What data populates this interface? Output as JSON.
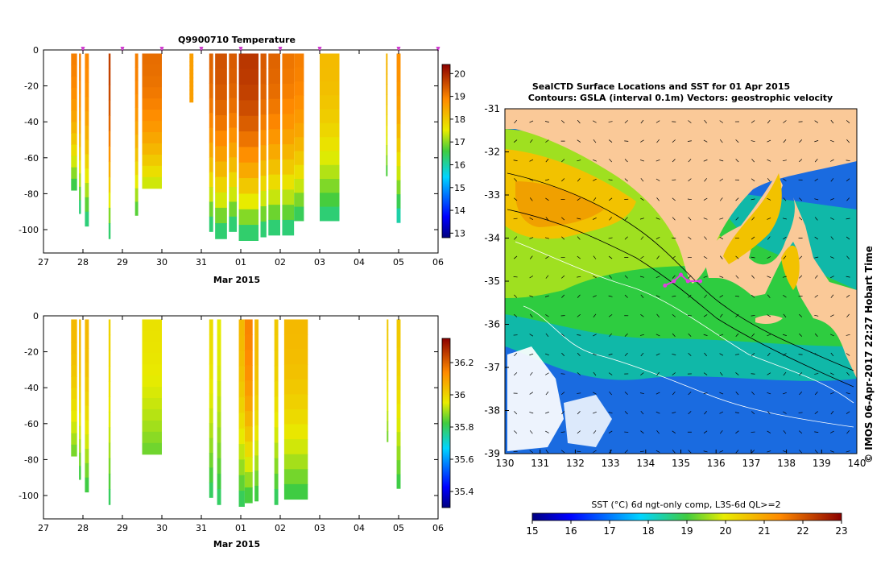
{
  "chart_data": [
    {
      "type": "heatmap",
      "id": "temperature",
      "title": "Q9900710  Temperature",
      "xlabel": "Mar 2015",
      "ylabel": "",
      "xticks": [
        "27",
        "28",
        "29",
        "30",
        "31",
        "01",
        "02",
        "03",
        "04",
        "05",
        "06"
      ],
      "yticks": [
        "0",
        "-20",
        "-40",
        "-60",
        "-80",
        "-100"
      ],
      "ylim": [
        -113,
        0
      ],
      "colorbar": {
        "ticks": [
          "13",
          "14",
          "15",
          "16",
          "17",
          "18",
          "19",
          "20"
        ],
        "range": [
          12.8,
          20.4
        ]
      },
      "profiles": [
        {
          "x": 27.7,
          "w": 0.15,
          "bottom": -78,
          "top_val": 19,
          "bot_val": 16.3
        },
        {
          "x": 27.9,
          "w": 0.05,
          "bottom": -91,
          "top_val": 19,
          "bot_val": 16
        },
        {
          "x": 28.05,
          "w": 0.1,
          "bottom": -98,
          "top_val": 18.9,
          "bot_val": 16
        },
        {
          "x": 28.65,
          "w": 0.05,
          "bottom": -105,
          "top_val": 19.7,
          "bot_val": 16
        },
        {
          "x": 29.32,
          "w": 0.08,
          "bottom": -92,
          "top_val": 19,
          "bot_val": 16.5
        },
        {
          "x": 29.5,
          "w": 0.5,
          "bottom": -77,
          "top_val": 19.2,
          "bot_val": 17.2
        },
        {
          "x": 30.7,
          "w": 0.1,
          "bottom": -29,
          "top_val": 18.6,
          "bot_val": 18.6
        },
        {
          "x": 31.2,
          "w": 0.1,
          "bottom": -101,
          "top_val": 19.3,
          "bot_val": 16
        },
        {
          "x": 31.35,
          "w": 0.3,
          "bottom": -105,
          "top_val": 19.5,
          "bot_val": 16
        },
        {
          "x": 31.7,
          "w": 0.2,
          "bottom": -101,
          "top_val": 19.4,
          "bot_val": 16
        },
        {
          "x": 31.95,
          "w": 0.5,
          "bottom": -106,
          "top_val": 19.8,
          "bot_val": 16
        },
        {
          "x": 32.5,
          "w": 0.15,
          "bottom": -104,
          "top_val": 19.4,
          "bot_val": 16
        },
        {
          "x": 32.7,
          "w": 0.3,
          "bottom": -103,
          "top_val": 19.3,
          "bot_val": 16
        },
        {
          "x": 33.05,
          "w": 0.3,
          "bottom": -103,
          "top_val": 19.1,
          "bot_val": 16
        },
        {
          "x": 33.35,
          "w": 0.25,
          "bottom": -95,
          "top_val": 19,
          "bot_val": 16.2
        },
        {
          "x": 34.0,
          "w": 0.5,
          "bottom": -95,
          "top_val": 18.2,
          "bot_val": 16.1
        },
        {
          "x": 35.68,
          "w": 0.03,
          "bottom": -70,
          "top_val": 18.3,
          "bot_val": 16.5
        },
        {
          "x": 35.95,
          "w": 0.1,
          "bottom": -96,
          "top_val": 18.8,
          "bot_val": 15.7
        }
      ]
    },
    {
      "type": "heatmap",
      "id": "salinity",
      "title": "",
      "xlabel": "Mar 2015",
      "ylabel": "",
      "xticks": [
        "27",
        "28",
        "29",
        "30",
        "31",
        "01",
        "02",
        "03",
        "04",
        "05",
        "06"
      ],
      "yticks": [
        "0",
        "-20",
        "-40",
        "-60",
        "-80",
        "-100"
      ],
      "ylim": [
        -113,
        0
      ],
      "colorbar": {
        "ticks": [
          "35.4",
          "35.6",
          "35.8",
          "36",
          "36.2"
        ],
        "range": [
          35.3,
          36.35
        ]
      },
      "profiles": [
        {
          "x": 27.7,
          "w": 0.15,
          "bottom": -78,
          "top_val": 36.05,
          "bot_val": 35.85
        },
        {
          "x": 27.9,
          "w": 0.05,
          "bottom": -91,
          "top_val": 36.05,
          "bot_val": 35.8
        },
        {
          "x": 28.05,
          "w": 0.1,
          "bottom": -98,
          "top_val": 36.05,
          "bot_val": 35.8
        },
        {
          "x": 28.65,
          "w": 0.05,
          "bottom": -105,
          "top_val": 36.0,
          "bot_val": 35.78
        },
        {
          "x": 29.5,
          "w": 0.5,
          "bottom": -77,
          "top_val": 35.97,
          "bot_val": 35.85
        },
        {
          "x": 31.2,
          "w": 0.1,
          "bottom": -101,
          "top_val": 35.98,
          "bot_val": 35.78
        },
        {
          "x": 31.4,
          "w": 0.1,
          "bottom": -105,
          "top_val": 35.95,
          "bot_val": 35.78
        },
        {
          "x": 31.95,
          "w": 0.15,
          "bottom": -106,
          "top_val": 36.05,
          "bot_val": 35.78
        },
        {
          "x": 32.1,
          "w": 0.2,
          "bottom": -104,
          "top_val": 36.15,
          "bot_val": 35.8
        },
        {
          "x": 32.35,
          "w": 0.1,
          "bottom": -103,
          "top_val": 36.05,
          "bot_val": 35.8
        },
        {
          "x": 32.85,
          "w": 0.1,
          "bottom": -105,
          "top_val": 36.02,
          "bot_val": 35.78
        },
        {
          "x": 33.1,
          "w": 0.6,
          "bottom": -102,
          "top_val": 36.05,
          "bot_val": 35.8
        },
        {
          "x": 35.7,
          "w": 0.03,
          "bottom": -70,
          "top_val": 36.02,
          "bot_val": 35.85
        },
        {
          "x": 35.95,
          "w": 0.1,
          "bottom": -96,
          "top_val": 36.02,
          "bot_val": 35.8
        }
      ]
    },
    {
      "type": "heatmap",
      "id": "sst-map",
      "title": "SealCTD Surface Locations and SST for 01 Apr 2015",
      "subtitle": "Contours: GSLA (interval 0.1m) Vectors: geostrophic velocity",
      "xticks": [
        "130",
        "131",
        "132",
        "133",
        "134",
        "135",
        "136",
        "137",
        "138",
        "139",
        "140"
      ],
      "yticks": [
        "-31",
        "-32",
        "-33",
        "-34",
        "-35",
        "-36",
        "-37",
        "-38",
        "-39"
      ],
      "xlim": [
        130,
        140
      ],
      "ylim": [
        -39,
        -31
      ],
      "side_label": "© IMOS 06-Apr-2017 22:27 Hobart Time",
      "colorbar": {
        "label": "SST (°C) 6d ngt-only comp, L3S-6d QL>=2",
        "ticks": [
          "15",
          "16",
          "17",
          "18",
          "19",
          "20",
          "21",
          "22",
          "23"
        ],
        "range": [
          15,
          23
        ]
      },
      "tracks": [
        [
          134.55,
          -35.1
        ],
        [
          134.8,
          -35.0
        ],
        [
          135.0,
          -34.85
        ],
        [
          135.2,
          -35.0
        ],
        [
          135.55,
          -35.0
        ]
      ]
    }
  ]
}
